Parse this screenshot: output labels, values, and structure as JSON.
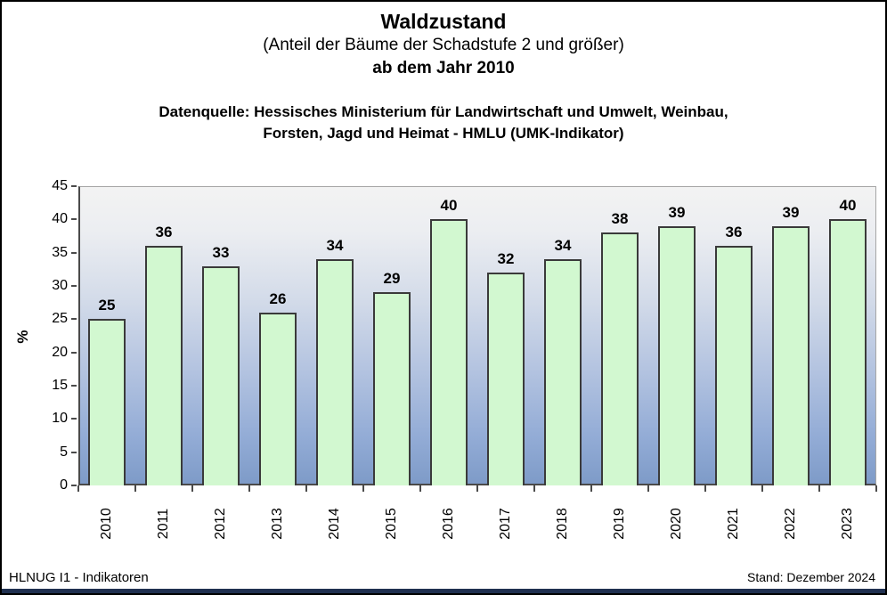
{
  "page": {
    "title": "Waldzustand",
    "subtitle": "(Anteil der Bäume der Schadstufe 2 und größer)",
    "subtitle2": "ab dem Jahr 2010",
    "source_line1": "Datenquelle: Hessisches Ministerium für Landwirtschaft und Umwelt, Weinbau,",
    "source_line2": "Forsten, Jagd und Heimat - HMLU (UMK-Indikator)",
    "footer_left": "HLNUG I1 - Indikatoren",
    "footer_right": "Stand: Dezember 2024"
  },
  "chart_data": {
    "type": "bar",
    "title": "Waldzustand (Anteil der Bäume der Schadstufe 2 und größer) ab dem Jahr 2010",
    "categories": [
      "2010",
      "2011",
      "2012",
      "2013",
      "2014",
      "2015",
      "2016",
      "2017",
      "2018",
      "2019",
      "2020",
      "2021",
      "2022",
      "2023"
    ],
    "values": [
      25,
      36,
      33,
      26,
      34,
      29,
      40,
      32,
      34,
      38,
      39,
      36,
      39,
      40
    ],
    "xlabel": "",
    "ylabel": "%",
    "ylim": [
      0,
      45
    ],
    "ytick_step": 5,
    "grid": false,
    "legend": false,
    "value_labels": true,
    "colors": {
      "bar_fill": "#d2f8d0",
      "bar_border": "#3a3a3a",
      "plot_gradient_top": "#f3f3f3",
      "plot_gradient_mid": "#b3c3e0",
      "plot_gradient_bottom": "#7e9bc8",
      "axis": "#4a4a4a",
      "footer_bar": "#203050"
    }
  }
}
